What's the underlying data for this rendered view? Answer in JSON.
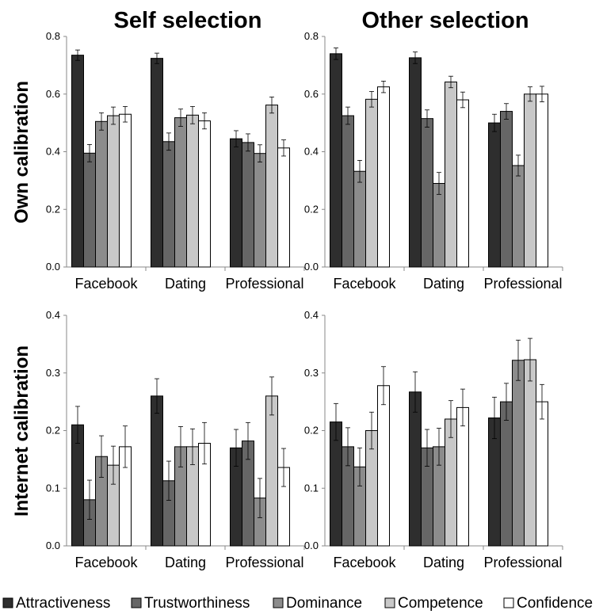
{
  "column_titles": [
    "Self selection",
    "Other selection"
  ],
  "row_labels": [
    "Own calibration",
    "Internet calibration"
  ],
  "colors": {
    "Attractiveness": "#2e2e2e",
    "Trustworthiness": "#666666",
    "Dominance": "#8c8c8c",
    "Competence": "#c8c8c8",
    "Confidence": "#ffffff",
    "outline": "#000000"
  },
  "legend": {
    "placement": "bottom",
    "entries": [
      "Attractiveness",
      "Trustworthiness",
      "Dominance",
      "Competence",
      "Confidence"
    ]
  },
  "chart_data": [
    {
      "type": "bar",
      "column": "Self selection",
      "ylabel": "Own calibration",
      "categories": [
        "Facebook",
        "Dating",
        "Professional"
      ],
      "ylim": [
        0,
        0.8
      ],
      "yticks": [
        "0.0",
        "0.2",
        "0.4",
        "0.6",
        "0.8"
      ],
      "series": [
        {
          "name": "Attractiveness",
          "values": [
            0.735,
            0.724,
            0.445
          ],
          "errors": [
            0.018,
            0.018,
            0.028
          ]
        },
        {
          "name": "Trustworthiness",
          "values": [
            0.395,
            0.435,
            0.432
          ],
          "errors": [
            0.03,
            0.03,
            0.03
          ]
        },
        {
          "name": "Dominance",
          "values": [
            0.505,
            0.518,
            0.394
          ],
          "errors": [
            0.03,
            0.03,
            0.03
          ]
        },
        {
          "name": "Competence",
          "values": [
            0.525,
            0.527,
            0.562
          ],
          "errors": [
            0.03,
            0.03,
            0.028
          ]
        },
        {
          "name": "Confidence",
          "values": [
            0.53,
            0.507,
            0.413
          ],
          "errors": [
            0.027,
            0.028,
            0.028
          ]
        }
      ]
    },
    {
      "type": "bar",
      "column": "Other selection",
      "ylabel": "Own calibration",
      "categories": [
        "Facebook",
        "Dating",
        "Professional"
      ],
      "ylim": [
        0,
        0.8
      ],
      "yticks": [
        "0.0",
        "0.2",
        "0.4",
        "0.6",
        "0.8"
      ],
      "series": [
        {
          "name": "Attractiveness",
          "values": [
            0.74,
            0.726,
            0.5
          ],
          "errors": [
            0.02,
            0.02,
            0.03
          ]
        },
        {
          "name": "Trustworthiness",
          "values": [
            0.525,
            0.515,
            0.54
          ],
          "errors": [
            0.03,
            0.03,
            0.027
          ]
        },
        {
          "name": "Dominance",
          "values": [
            0.332,
            0.29,
            0.352
          ],
          "errors": [
            0.038,
            0.038,
            0.036
          ]
        },
        {
          "name": "Competence",
          "values": [
            0.582,
            0.642,
            0.6
          ],
          "errors": [
            0.027,
            0.02,
            0.025
          ]
        },
        {
          "name": "Confidence",
          "values": [
            0.625,
            0.58,
            0.6
          ],
          "errors": [
            0.02,
            0.027,
            0.027
          ]
        }
      ]
    },
    {
      "type": "bar",
      "column": "Self selection",
      "ylabel": "Internet calibration",
      "categories": [
        "Facebook",
        "Dating",
        "Professional"
      ],
      "ylim": [
        0,
        0.4
      ],
      "yticks": [
        "0.0",
        "0.1",
        "0.2",
        "0.3",
        "0.4"
      ],
      "series": [
        {
          "name": "Attractiveness",
          "values": [
            0.21,
            0.26,
            0.17
          ],
          "errors": [
            0.032,
            0.03,
            0.032
          ]
        },
        {
          "name": "Trustworthiness",
          "values": [
            0.08,
            0.113,
            0.182
          ],
          "errors": [
            0.034,
            0.034,
            0.032
          ]
        },
        {
          "name": "Dominance",
          "values": [
            0.155,
            0.172,
            0.083
          ],
          "errors": [
            0.036,
            0.035,
            0.034
          ]
        },
        {
          "name": "Competence",
          "values": [
            0.14,
            0.172,
            0.26
          ],
          "errors": [
            0.033,
            0.031,
            0.033
          ]
        },
        {
          "name": "Confidence",
          "values": [
            0.172,
            0.178,
            0.136
          ],
          "errors": [
            0.036,
            0.036,
            0.033
          ]
        }
      ]
    },
    {
      "type": "bar",
      "column": "Other selection",
      "ylabel": "Internet calibration",
      "categories": [
        "Facebook",
        "Dating",
        "Professional"
      ],
      "ylim": [
        0,
        0.4
      ],
      "yticks": [
        "0.0",
        "0.1",
        "0.2",
        "0.3",
        "0.4"
      ],
      "series": [
        {
          "name": "Attractiveness",
          "values": [
            0.215,
            0.267,
            0.222
          ],
          "errors": [
            0.032,
            0.035,
            0.036
          ]
        },
        {
          "name": "Trustworthiness",
          "values": [
            0.172,
            0.17,
            0.25
          ],
          "errors": [
            0.033,
            0.032,
            0.032
          ]
        },
        {
          "name": "Dominance",
          "values": [
            0.137,
            0.172,
            0.322
          ],
          "errors": [
            0.033,
            0.032,
            0.035
          ]
        },
        {
          "name": "Competence",
          "values": [
            0.2,
            0.22,
            0.323
          ],
          "errors": [
            0.032,
            0.032,
            0.037
          ]
        },
        {
          "name": "Confidence",
          "values": [
            0.278,
            0.24,
            0.25
          ],
          "errors": [
            0.033,
            0.032,
            0.03
          ]
        }
      ]
    }
  ]
}
